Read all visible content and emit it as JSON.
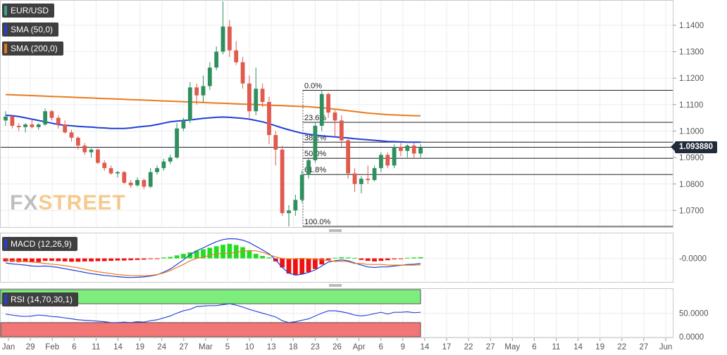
{
  "legend": {
    "pair": "EUR/USD",
    "sma50": "SMA (50,0)",
    "sma200": "SMA (200,0)",
    "macd": "MACD (12,26,9)",
    "rsi": "RSI (14,70,30,1)"
  },
  "logo": {
    "fx": "FX",
    "street": "STREET"
  },
  "last_price_label": "1.093880",
  "colors": {
    "bull": "#2f8f5f",
    "bear": "#e05a4e",
    "sma50": "#1f3fd8",
    "sma200": "#ea7a1e",
    "macd_pos": "#22dd22",
    "macd_neg": "#ee1111",
    "rsi_line": "#2a4fd8",
    "rsi_over": "#7ded7d",
    "rsi_under": "#f27676"
  },
  "chart_data": [
    {
      "type": "candlestick",
      "symbol": "EUR/USD",
      "last_price": 1.09388,
      "y_ticks": [
        "1.1400",
        "1.1300",
        "1.1200",
        "1.1100",
        "1.1000",
        "1.0900",
        "1.0800",
        "1.0700"
      ],
      "ylim": [
        1.064,
        1.149
      ],
      "fibonacci": {
        "high": 1.1154,
        "low": 1.064,
        "levels": [
          {
            "label": "0.0%",
            "value": 1.1154
          },
          {
            "label": "23.6%",
            "value": 1.1033
          },
          {
            "label": "38.2%",
            "value": 1.0958
          },
          {
            "label": "50.0%",
            "value": 1.0897
          },
          {
            "label": "61.8%",
            "value": 1.0836
          },
          {
            "label": "100.0%",
            "value": 1.064
          }
        ]
      },
      "candles": [
        [
          1.104,
          1.1075,
          1.102,
          1.1055
        ],
        [
          1.1055,
          1.106,
          1.101,
          1.102
        ],
        [
          1.102,
          1.103,
          1.1,
          1.1015
        ],
        [
          1.1015,
          1.103,
          1.0995,
          1.1025
        ],
        [
          1.1025,
          1.1045,
          1.101,
          1.1015
        ],
        [
          1.1015,
          1.103,
          1.1005,
          1.1025
        ],
        [
          1.1025,
          1.1085,
          1.102,
          1.1075
        ],
        [
          1.1075,
          1.108,
          1.104,
          1.105
        ],
        [
          1.105,
          1.106,
          1.101,
          1.1025
        ],
        [
          1.1025,
          1.104,
          1.099,
          1.0995
        ],
        [
          1.0995,
          1.1005,
          1.096,
          1.0975
        ],
        [
          1.0975,
          1.098,
          1.093,
          1.0945
        ],
        [
          1.0945,
          1.0955,
          1.091,
          1.092
        ],
        [
          1.092,
          1.0935,
          1.09,
          1.093
        ],
        [
          1.093,
          1.0935,
          1.0875,
          1.088
        ],
        [
          1.088,
          1.089,
          1.085,
          1.086
        ],
        [
          1.086,
          1.087,
          1.0835,
          1.084
        ],
        [
          1.084,
          1.085,
          1.0825,
          1.0845
        ],
        [
          1.0845,
          1.085,
          1.08,
          1.0805
        ],
        [
          1.0805,
          1.0815,
          1.0785,
          1.0795
        ],
        [
          1.0795,
          1.0825,
          1.079,
          1.0815
        ],
        [
          1.0815,
          1.082,
          1.078,
          1.079
        ],
        [
          1.079,
          1.086,
          1.0785,
          1.0845
        ],
        [
          1.0845,
          1.087,
          1.0835,
          1.086
        ],
        [
          1.086,
          1.0895,
          1.085,
          1.0885
        ],
        [
          1.0885,
          1.091,
          1.0875,
          1.09
        ],
        [
          1.09,
          1.103,
          1.0895,
          1.101
        ],
        [
          1.101,
          1.105,
          1.1,
          1.104
        ],
        [
          1.104,
          1.1185,
          1.103,
          1.1165
        ],
        [
          1.1165,
          1.118,
          1.11,
          1.1135
        ],
        [
          1.1135,
          1.121,
          1.111,
          1.117
        ],
        [
          1.117,
          1.126,
          1.1155,
          1.124
        ],
        [
          1.124,
          1.132,
          1.123,
          1.13
        ],
        [
          1.13,
          1.149,
          1.129,
          1.1395
        ],
        [
          1.1395,
          1.142,
          1.128,
          1.1305
        ],
        [
          1.1305,
          1.134,
          1.125,
          1.126
        ],
        [
          1.126,
          1.128,
          1.116,
          1.118
        ],
        [
          1.118,
          1.121,
          1.105,
          1.1075
        ],
        [
          1.1075,
          1.124,
          1.106,
          1.116
        ],
        [
          1.116,
          1.118,
          1.109,
          1.111
        ],
        [
          1.111,
          1.113,
          1.095,
          1.0985
        ],
        [
          1.0985,
          1.1,
          1.087,
          1.093
        ],
        [
          1.093,
          1.0945,
          1.068,
          1.069
        ],
        [
          1.069,
          1.072,
          1.064,
          1.07
        ],
        [
          1.07,
          1.076,
          1.068,
          1.074
        ],
        [
          1.074,
          1.085,
          1.073,
          1.0835
        ],
        [
          1.0835,
          1.09,
          1.082,
          1.089
        ],
        [
          1.089,
          1.103,
          1.088,
          1.102
        ],
        [
          1.102,
          1.1154,
          1.1,
          1.114
        ],
        [
          1.114,
          1.1145,
          1.105,
          1.107
        ],
        [
          1.107,
          1.108,
          1.098,
          1.104
        ],
        [
          1.104,
          1.106,
          1.094,
          1.0965
        ],
        [
          1.0965,
          1.097,
          1.082,
          1.084
        ],
        [
          1.084,
          1.086,
          1.077,
          1.08
        ],
        [
          1.08,
          1.083,
          1.0765,
          1.082
        ],
        [
          1.082,
          1.087,
          1.08,
          1.0815
        ],
        [
          1.0815,
          1.087,
          1.081,
          1.086
        ],
        [
          1.086,
          1.092,
          1.0845,
          1.091
        ],
        [
          1.091,
          1.092,
          1.086,
          1.087
        ],
        [
          1.087,
          1.095,
          1.086,
          1.094
        ],
        [
          1.094,
          1.0955,
          1.0905,
          1.0925
        ],
        [
          1.0925,
          1.095,
          1.09,
          1.0945
        ],
        [
          1.0945,
          1.0955,
          1.0895,
          1.0915
        ],
        [
          1.0915,
          1.095,
          1.09,
          1.0939
        ]
      ],
      "sma50": [
        1.106,
        1.1058,
        1.1055,
        1.105,
        1.1045,
        1.104,
        1.1035,
        1.103,
        1.1025,
        1.1022,
        1.102,
        1.1018,
        1.1016,
        1.1015,
        1.1013,
        1.1012,
        1.101,
        1.101,
        1.101,
        1.1012,
        1.1015,
        1.1018,
        1.102,
        1.1025,
        1.103,
        1.1035,
        1.1038,
        1.104,
        1.1042,
        1.1045,
        1.1048,
        1.105,
        1.1052,
        1.1053,
        1.1052,
        1.105,
        1.1048,
        1.1045,
        1.104,
        1.1035,
        1.1028,
        1.102,
        1.1012,
        1.1005,
        1.0998,
        1.0992,
        1.0988,
        1.0985,
        1.0982,
        1.098,
        1.0978,
        1.0976,
        1.0974,
        1.0971,
        1.0969,
        1.0967,
        1.0965,
        1.0963,
        1.0961,
        1.096,
        1.0959,
        1.0958,
        1.0958,
        1.0958
      ],
      "sma200": [
        1.1138,
        1.1137,
        1.1136,
        1.1135,
        1.1134,
        1.1133,
        1.1132,
        1.1131,
        1.113,
        1.1129,
        1.1128,
        1.1127,
        1.1126,
        1.1125,
        1.1124,
        1.1123,
        1.1122,
        1.1121,
        1.112,
        1.1119,
        1.1118,
        1.1117,
        1.1116,
        1.1115,
        1.1114,
        1.1113,
        1.1112,
        1.1111,
        1.111,
        1.1109,
        1.1108,
        1.1107,
        1.1106,
        1.1105,
        1.1104,
        1.1103,
        1.1102,
        1.1101,
        1.11,
        1.1099,
        1.1098,
        1.1097,
        1.1096,
        1.1095,
        1.1094,
        1.1093,
        1.1092,
        1.109,
        1.1088,
        1.1086,
        1.1083,
        1.108,
        1.1077,
        1.1074,
        1.1071,
        1.1068,
        1.1066,
        1.1064,
        1.1062,
        1.1061,
        1.106,
        1.1059,
        1.1058,
        1.1058
      ]
    },
    {
      "type": "bar",
      "name": "MACD (12,26,9)",
      "y_ticks": [
        "-0.0000"
      ],
      "ylim": [
        -0.0075,
        0.008
      ],
      "histogram": [
        -0.001,
        -0.0011,
        -0.0012,
        -0.0012,
        -0.0013,
        -0.0012,
        -0.0008,
        -0.0008,
        -0.0009,
        -0.001,
        -0.0011,
        -0.0011,
        -0.001,
        -0.001,
        -0.0009,
        -0.0009,
        -0.0008,
        -0.0007,
        -0.0007,
        -0.0006,
        -0.0005,
        -0.0004,
        -0.0002,
        -0.0001,
        0.0003,
        0.0005,
        0.001,
        0.0015,
        0.002,
        0.0025,
        0.003,
        0.0035,
        0.004,
        0.0045,
        0.0048,
        0.0044,
        0.0037,
        0.0026,
        0.0015,
        0.0008,
        0.0003,
        -0.001,
        -0.003,
        -0.005,
        -0.0055,
        -0.0052,
        -0.0045,
        -0.0035,
        -0.002,
        -0.0005,
        0.0002,
        0.0004,
        0.0003,
        0.0002,
        -0.0005,
        -0.0008,
        -0.001,
        -0.0008,
        -0.0006,
        -0.0003,
        -0.0001,
        0.0002,
        0.0003,
        0.0004
      ],
      "macd": [
        -0.0015,
        -0.0018,
        -0.002,
        -0.0022,
        -0.0025,
        -0.0026,
        -0.0025,
        -0.0027,
        -0.003,
        -0.0034,
        -0.0038,
        -0.0042,
        -0.0046,
        -0.005,
        -0.0053,
        -0.0056,
        -0.0058,
        -0.006,
        -0.0062,
        -0.0063,
        -0.0062,
        -0.0061,
        -0.0058,
        -0.0054,
        -0.0045,
        -0.0035,
        -0.002,
        -0.0005,
        0.0012,
        0.0025,
        0.0035,
        0.0045,
        0.0055,
        0.0062,
        0.0065,
        0.0064,
        0.006,
        0.0052,
        0.004,
        0.0028,
        0.0015,
        -0.0005,
        -0.003,
        -0.0048,
        -0.0055,
        -0.0052,
        -0.0046,
        -0.0038,
        -0.0025,
        -0.0012,
        -0.0008,
        -0.0005,
        -0.0008,
        -0.0015,
        -0.0022,
        -0.0028,
        -0.003,
        -0.0028,
        -0.0028,
        -0.0025,
        -0.0023,
        -0.002,
        -0.0019,
        -0.0017
      ],
      "signal": [
        -0.0005,
        -0.0007,
        -0.0008,
        -0.001,
        -0.0012,
        -0.0014,
        -0.0017,
        -0.0019,
        -0.0021,
        -0.0024,
        -0.0027,
        -0.0031,
        -0.0036,
        -0.004,
        -0.0044,
        -0.0047,
        -0.005,
        -0.0053,
        -0.0055,
        -0.0057,
        -0.0057,
        -0.0057,
        -0.0056,
        -0.0053,
        -0.0048,
        -0.004,
        -0.003,
        -0.002,
        -0.0008,
        0.0,
        0.0005,
        0.001,
        0.0015,
        0.0017,
        0.0017,
        0.002,
        0.0023,
        0.0026,
        0.0025,
        0.002,
        0.0012,
        0.0005,
        0.0,
        -0.0002,
        -0.0001,
        0.0,
        -0.0001,
        -0.0003,
        -0.0005,
        -0.0007,
        -0.001,
        -0.0009,
        -0.0011,
        -0.0017,
        -0.0017,
        -0.002,
        -0.002,
        -0.002,
        -0.0022,
        -0.0022,
        -0.0022,
        -0.0022,
        -0.0022,
        -0.0021
      ]
    },
    {
      "type": "line",
      "name": "RSI (14,70,30,1)",
      "y_ticks": [
        "50.0000",
        "0.0000"
      ],
      "ylim": [
        0,
        100
      ],
      "overbought": 70,
      "oversold": 30,
      "rsi": [
        48,
        46,
        44,
        43,
        44,
        46,
        45,
        43,
        42,
        40,
        38,
        36,
        35,
        34,
        33,
        32,
        30,
        30,
        31,
        30,
        32,
        31,
        34,
        36,
        40,
        44,
        50,
        55,
        58,
        64,
        65,
        66,
        66,
        68,
        70,
        67,
        63,
        58,
        54,
        50,
        46,
        42,
        34,
        30,
        32,
        35,
        38,
        44,
        50,
        55,
        55,
        53,
        50,
        46,
        44,
        46,
        49,
        52,
        48,
        52,
        52,
        53,
        51,
        52
      ]
    }
  ],
  "x_axis": {
    "labels": [
      "Jan",
      "29",
      "Feb",
      "6",
      "11",
      "14",
      "19",
      "24",
      "27",
      "Mar",
      "5",
      "10",
      "13",
      "18",
      "23",
      "26",
      "Apr",
      "6",
      "9",
      "14",
      "17",
      "22",
      "27",
      "May",
      "6",
      "11",
      "14",
      "19",
      "22",
      "27",
      "Jun"
    ]
  }
}
